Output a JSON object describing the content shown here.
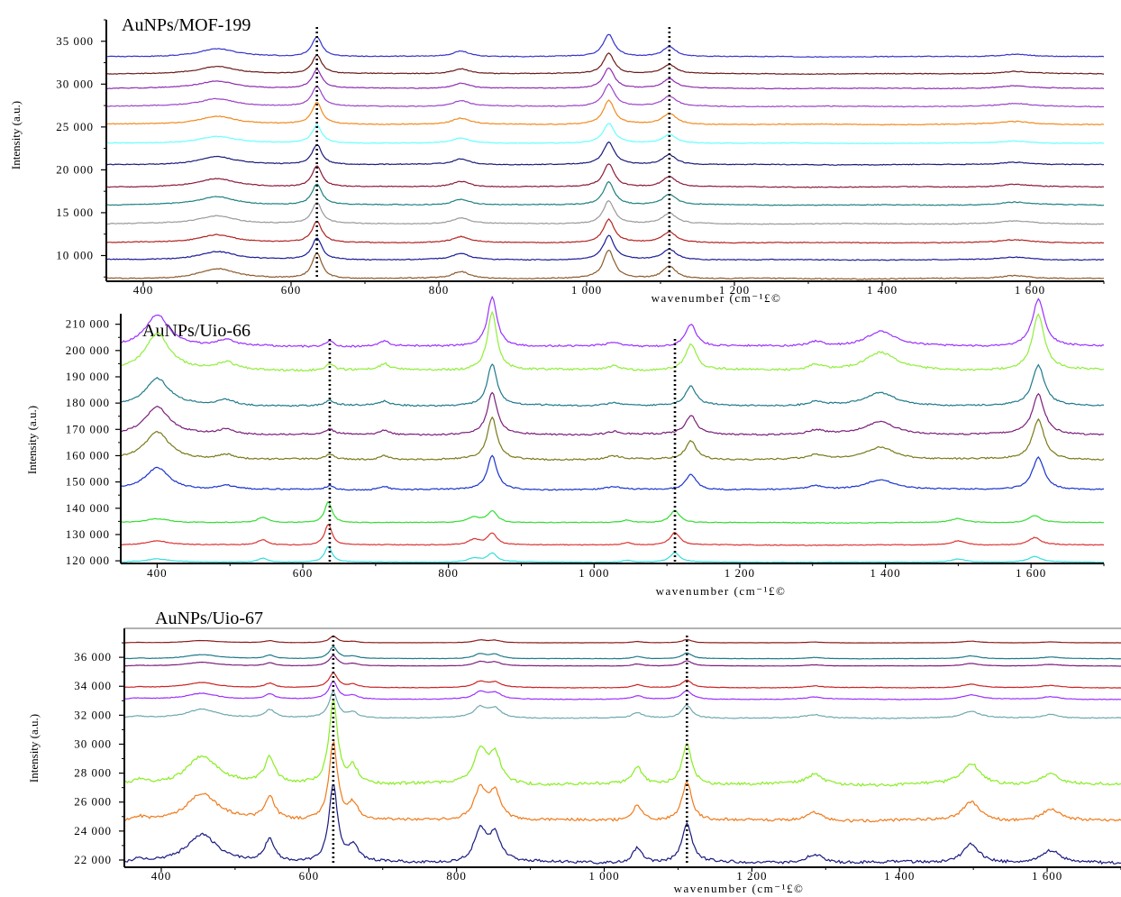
{
  "chart_data": [
    {
      "type": "line",
      "title": "AuNPs/MOF-199",
      "xlabel": "wavenumber (cm⁻¹£©",
      "ylabel": "Intensity (a.u.)",
      "xlim": [
        350,
        1700
      ],
      "ylim": [
        7000,
        37500
      ],
      "xticks": [
        400,
        600,
        800,
        1000,
        1200,
        1400,
        1600
      ],
      "xtick_labels": [
        "400",
        "600",
        "800",
        "1 000",
        "1 200",
        "1 400",
        "1 600"
      ],
      "yticks": [
        10000,
        15000,
        20000,
        25000,
        30000,
        35000
      ],
      "ytick_labels": [
        "10 000",
        "15 000",
        "20 000",
        "25 000",
        "30 000",
        "35 000"
      ],
      "vlines": [
        635,
        1112
      ],
      "peak_profile": [
        {
          "x": 500,
          "w": 30,
          "r": 0.35
        },
        {
          "x": 635,
          "w": 8,
          "r": 0.9
        },
        {
          "x": 830,
          "w": 14,
          "r": 0.25
        },
        {
          "x": 1030,
          "w": 9,
          "r": 1.0
        },
        {
          "x": 1112,
          "w": 11,
          "r": 0.45
        },
        {
          "x": 1580,
          "w": 25,
          "r": 0.12
        }
      ],
      "series": [
        {
          "color": "#3333cc",
          "baseline": 33200,
          "scale": 2600
        },
        {
          "color": "#6b1a1a",
          "baseline": 31200,
          "scale": 2400
        },
        {
          "color": "#8e2bb0",
          "baseline": 29500,
          "scale": 2400
        },
        {
          "color": "#9b44c9",
          "baseline": 27400,
          "scale": 2600
        },
        {
          "color": "#f28a1d",
          "baseline": 25300,
          "scale": 2800
        },
        {
          "color": "#66ffff",
          "baseline": 23100,
          "scale": 2300
        },
        {
          "color": "#1a1a7a",
          "baseline": 20600,
          "scale": 2600
        },
        {
          "color": "#8b1a3a",
          "baseline": 18000,
          "scale": 2700
        },
        {
          "color": "#1f8080",
          "baseline": 15900,
          "scale": 2700
        },
        {
          "color": "#999999",
          "baseline": 13700,
          "scale": 2700
        },
        {
          "color": "#b22222",
          "baseline": 11500,
          "scale": 2700
        },
        {
          "color": "#1a1a99",
          "baseline": 9500,
          "scale": 2800
        },
        {
          "color": "#8b5a2b",
          "baseline": 7300,
          "scale": 3300
        }
      ]
    },
    {
      "type": "line",
      "title": "AuNPs/Uio-66",
      "xlabel": "wavenumber (cm⁻¹£©",
      "ylabel": "Intensity (a.u.)",
      "xlim": [
        350,
        1700
      ],
      "ylim": [
        119000,
        214000
      ],
      "xticks": [
        400,
        600,
        800,
        1000,
        1200,
        1400,
        1600
      ],
      "xtick_labels": [
        "400",
        "600",
        "800",
        "1 000",
        "1 200",
        "1 400",
        "1 600"
      ],
      "yticks": [
        120000,
        130000,
        140000,
        150000,
        160000,
        170000,
        180000,
        190000,
        200000,
        210000
      ],
      "ytick_labels": [
        "120 000",
        "130 000",
        "140 000",
        "150 000",
        "160 000",
        "170 000",
        "180 000",
        "190 000",
        "200 000",
        "210 000"
      ],
      "vlines": [
        637,
        1111
      ],
      "peak_profile": [
        {
          "x": 400,
          "w": 20,
          "r": 0.65
        },
        {
          "x": 495,
          "w": 14,
          "r": 0.12
        },
        {
          "x": 637,
          "w": 7,
          "r": 0.12
        },
        {
          "x": 712,
          "w": 8,
          "r": 0.1
        },
        {
          "x": 860,
          "w": 8,
          "r": 1.0
        },
        {
          "x": 1027,
          "w": 12,
          "r": 0.08
        },
        {
          "x": 1133,
          "w": 9,
          "r": 0.45
        },
        {
          "x": 1305,
          "w": 12,
          "r": 0.1
        },
        {
          "x": 1393,
          "w": 25,
          "r": 0.3
        },
        {
          "x": 1610,
          "w": 10,
          "r": 0.95
        }
      ],
      "series": [
        {
          "color": "#9b30ff",
          "baseline": 201500,
          "scale": 19000
        },
        {
          "color": "#90ee3a",
          "baseline": 192500,
          "scale": 22000
        },
        {
          "color": "#1f7a8a",
          "baseline": 179000,
          "scale": 16000
        },
        {
          "color": "#7b1f7b",
          "baseline": 168000,
          "scale": 16000
        },
        {
          "color": "#7a7a1a",
          "baseline": 158500,
          "scale": 16000
        },
        {
          "color": "#1a33cc",
          "baseline": 147000,
          "scale": 13000
        }
      ],
      "lower_series": [
        {
          "color": "#33dd33",
          "baseline": 134500,
          "scale": 8000
        },
        {
          "color": "#dd3333",
          "baseline": 126000,
          "scale": 8000
        },
        {
          "color": "#33dddd",
          "baseline": 119500,
          "scale": 6000
        }
      ],
      "lower_peak_profile": [
        {
          "x": 400,
          "w": 20,
          "r": 0.2
        },
        {
          "x": 545,
          "w": 8,
          "r": 0.25
        },
        {
          "x": 635,
          "w": 6,
          "r": 1.0
        },
        {
          "x": 835,
          "w": 10,
          "r": 0.25
        },
        {
          "x": 860,
          "w": 8,
          "r": 0.55
        },
        {
          "x": 1045,
          "w": 8,
          "r": 0.12
        },
        {
          "x": 1111,
          "w": 8,
          "r": 0.6
        },
        {
          "x": 1500,
          "w": 12,
          "r": 0.2
        },
        {
          "x": 1605,
          "w": 10,
          "r": 0.35
        }
      ]
    },
    {
      "type": "line",
      "title": "AuNPs/Uio-67",
      "xlabel": "wavenumber (cm⁻¹£©",
      "ylabel": "Intensity (a.u.)",
      "xlim": [
        350,
        1700
      ],
      "ylim": [
        21500,
        38000
      ],
      "xticks": [
        400,
        600,
        800,
        1000,
        1200,
        1400,
        1600
      ],
      "xtick_labels": [
        "400",
        "600",
        "800",
        "1 000",
        "1 200",
        "1 400",
        "1 600"
      ],
      "yticks": [
        22000,
        24000,
        26000,
        28000,
        30000,
        32000,
        34000,
        36000
      ],
      "ytick_labels": [
        "22 000",
        "24 000",
        "26 000",
        "28 000",
        "30 000",
        "32 000",
        "34 000",
        "36 000"
      ],
      "vlines": [
        633,
        1112
      ],
      "peak_profile": [
        {
          "x": 370,
          "w": 10,
          "r": 0.05
        },
        {
          "x": 455,
          "w": 25,
          "r": 0.35
        },
        {
          "x": 547,
          "w": 8,
          "r": 0.3
        },
        {
          "x": 633,
          "w": 7,
          "r": 1.0
        },
        {
          "x": 660,
          "w": 8,
          "r": 0.2
        },
        {
          "x": 832,
          "w": 10,
          "r": 0.4
        },
        {
          "x": 852,
          "w": 10,
          "r": 0.35
        },
        {
          "x": 1045,
          "w": 8,
          "r": 0.2
        },
        {
          "x": 1112,
          "w": 8,
          "r": 0.5
        },
        {
          "x": 1285,
          "w": 14,
          "r": 0.12
        },
        {
          "x": 1497,
          "w": 14,
          "r": 0.25
        },
        {
          "x": 1605,
          "w": 14,
          "r": 0.15
        }
      ],
      "series": [
        {
          "color": "#8b1a1a",
          "baseline": 37000,
          "scale": 450
        },
        {
          "color": "#1f7a8a",
          "baseline": 35900,
          "scale": 800
        },
        {
          "color": "#7b1f7b",
          "baseline": 35400,
          "scale": 700
        },
        {
          "color": "#cc2222",
          "baseline": 33900,
          "scale": 1000
        },
        {
          "color": "#9b30ff",
          "baseline": 33100,
          "scale": 1200
        },
        {
          "color": "#6fa8b0",
          "baseline": 31800,
          "scale": 1800
        },
        {
          "color": "#88ee22",
          "baseline": 27200,
          "scale": 5800
        },
        {
          "color": "#f07a1a",
          "baseline": 24700,
          "scale": 5400
        },
        {
          "color": "#1a1a80",
          "baseline": 21800,
          "scale": 5400
        }
      ]
    }
  ]
}
